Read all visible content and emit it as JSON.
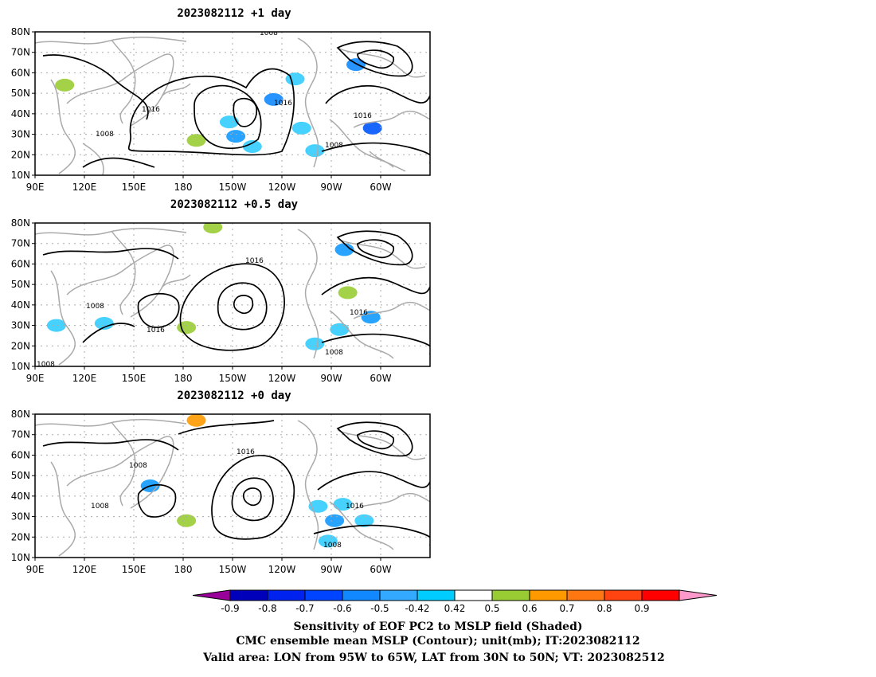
{
  "figure": {
    "panels": [
      {
        "title": "2023082112 +1 day",
        "isobar_labels": [
          "1008",
          "1016",
          "1016",
          "1016",
          "1008",
          "1008"
        ],
        "shading": [
          {
            "lon": 108,
            "lat": 54,
            "color": "#99cc33"
          },
          {
            "lon": -152,
            "lat": 36,
            "color": "#33ccff"
          },
          {
            "lon": -148,
            "lat": 29,
            "color": "#1199ff"
          },
          {
            "lon": -138,
            "lat": 24,
            "color": "#33ccff"
          },
          {
            "lon": -125,
            "lat": 47,
            "color": "#1188ff"
          },
          {
            "lon": -75,
            "lat": 64,
            "color": "#1188ff"
          },
          {
            "lon": -65,
            "lat": 33,
            "color": "#0055ff"
          },
          {
            "lon": -108,
            "lat": 33,
            "color": "#33ccff"
          },
          {
            "lon": -100,
            "lat": 22,
            "color": "#33ccff"
          },
          {
            "lon": -112,
            "lat": 57,
            "color": "#33ccff"
          },
          {
            "lon": -172,
            "lat": 27,
            "color": "#99cc33"
          }
        ]
      },
      {
        "title": "2023082112 +0.5 day",
        "isobar_labels": [
          "1016",
          "1008",
          "1016",
          "1016",
          "1008",
          "1008"
        ],
        "shading": [
          {
            "lon": -162,
            "lat": 78,
            "color": "#99cc33"
          },
          {
            "lon": -80,
            "lat": 46,
            "color": "#99cc33"
          },
          {
            "lon": -178,
            "lat": 29,
            "color": "#99cc33"
          },
          {
            "lon": -66,
            "lat": 34,
            "color": "#1199ff"
          },
          {
            "lon": -85,
            "lat": 28,
            "color": "#33ccff"
          },
          {
            "lon": -100,
            "lat": 21,
            "color": "#33ccff"
          },
          {
            "lon": -82,
            "lat": 67,
            "color": "#1199ff"
          },
          {
            "lon": 132,
            "lat": 31,
            "color": "#33ccff"
          },
          {
            "lon": 103,
            "lat": 30,
            "color": "#33ccff"
          }
        ]
      },
      {
        "title": "2023082112 +0 day",
        "isobar_labels": [
          "1016",
          "1008",
          "1008",
          "1016",
          "1008"
        ],
        "shading": [
          {
            "lon": -172,
            "lat": 77,
            "color": "#ff9900"
          },
          {
            "lon": -98,
            "lat": 35,
            "color": "#33ccff"
          },
          {
            "lon": -88,
            "lat": 28,
            "color": "#1199ff"
          },
          {
            "lon": -70,
            "lat": 28,
            "color": "#33ccff"
          },
          {
            "lon": -83,
            "lat": 36,
            "color": "#33ccff"
          },
          {
            "lon": -92,
            "lat": 18,
            "color": "#33ccff"
          },
          {
            "lon": 160,
            "lat": 45,
            "color": "#1199ff"
          },
          {
            "lon": -178,
            "lat": 28,
            "color": "#99cc33"
          }
        ]
      }
    ],
    "lon_ticks": [
      "90E",
      "120E",
      "150E",
      "180",
      "150W",
      "120W",
      "90W",
      "60W"
    ],
    "lat_ticks": [
      "80N",
      "70N",
      "60N",
      "50N",
      "40N",
      "30N",
      "20N",
      "10N"
    ],
    "colorbar": {
      "labels": [
        "-0.9",
        "-0.8",
        "-0.7",
        "-0.6",
        "-0.5",
        "-0.42",
        "0.42",
        "0.5",
        "0.6",
        "0.7",
        "0.8",
        "0.9"
      ],
      "colors": [
        "#990099",
        "#0000bb",
        "#0022ee",
        "#0044ff",
        "#1188ff",
        "#33aaff",
        "#00ccff",
        "#ffffff",
        "#99cc33",
        "#ff9900",
        "#ff7711",
        "#ff4411",
        "#ff0000",
        "#ff99cc"
      ]
    },
    "caption": [
      "Sensitivity of EOF PC2 to MSLP field (Shaded)",
      "CMC ensemble mean MSLP (Contour); unit(mb); IT:2023082112",
      "Valid area: LON from 95W to 65W, LAT from 30N to 50N; VT: 2023082512"
    ]
  }
}
